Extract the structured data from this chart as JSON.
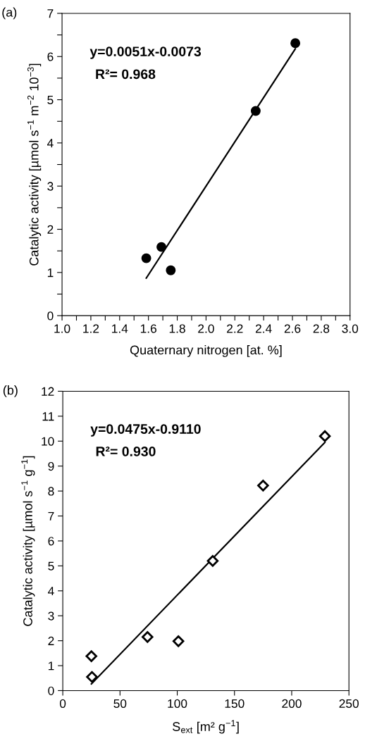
{
  "chart_data": [
    {
      "type": "scatter",
      "title": "(a)",
      "xlabel": "Quaternary nitrogen [at. %]",
      "ylabel": "Catalytic activity [µmol s$^{−1}$ m$^{−2}$ 10$^{−3}$]",
      "annotations": [
        "y=0.0051x-0.0073",
        "R²= 0.968"
      ],
      "series": [
        {
          "color": "#000000",
          "marker": "circle",
          "x": [
            1.585,
            1.69,
            1.755,
            2.345,
            2.62
          ],
          "values": [
            1.33,
            1.59,
            1.05,
            4.74,
            6.31
          ]
        },
        {
          "type": "line",
          "color": "#000000",
          "marker": "none",
          "x": [
            1.585,
            2.62
          ],
          "values": [
            0.87,
            6.18
          ]
        }
      ],
      "xlim": [
        1.0,
        3.0
      ],
      "ylim": [
        0,
        7
      ],
      "xticks": [
        {
          "value": 1,
          "label": "1.0"
        },
        {
          "value": 1.1,
          "label": null
        },
        1.2,
        {
          "value": 1.3,
          "label": null
        },
        1.4,
        {
          "value": 1.5,
          "label": null
        },
        1.6,
        {
          "value": 1.7,
          "label": null
        },
        1.8,
        {
          "value": 1.9,
          "label": null
        },
        {
          "value": 2,
          "label": "2.0"
        },
        {
          "value": 2.1,
          "label": null
        },
        2.2,
        {
          "value": 2.3,
          "label": null
        },
        2.4,
        {
          "value": 2.5,
          "label": null
        },
        2.6,
        {
          "value": 2.7,
          "label": null
        },
        2.8,
        {
          "value": 2.9,
          "label": null
        },
        {
          "value": 3,
          "label": "3.0"
        }
      ],
      "yticks": [
        0,
        {
          "value": 0.5,
          "label": null
        },
        1,
        {
          "value": 1.5,
          "label": null
        },
        2,
        {
          "value": 2.5,
          "label": null
        },
        3,
        {
          "value": 3.5,
          "label": null
        },
        4,
        {
          "value": 4.5,
          "label": null
        },
        5,
        {
          "value": 5.5,
          "label": null
        },
        6,
        {
          "value": 6.5,
          "label": null
        },
        7
      ],
      "grid": false,
      "legend": false
    },
    {
      "type": "scatter",
      "title": "(b)",
      "xlabel": "S$_{ext}$ [m² g$^{−1}$]",
      "ylabel": "Catalytic activity [µmol s$^{−1}$ g$^{−1}$]",
      "annotations": [
        "y=0.0475x-0.9110",
        "R²= 0.930"
      ],
      "series": [
        {
          "color": "#000000",
          "marker": "diamond",
          "x": [
            25,
            25.5,
            74,
            101,
            131,
            175,
            229
          ],
          "values": [
            1.38,
            0.55,
            2.15,
            1.98,
            5.2,
            8.22,
            10.2
          ]
        },
        {
          "type": "line",
          "color": "#000000",
          "marker": "none",
          "x": [
            25,
            229
          ],
          "values": [
            0.27,
            9.95
          ]
        }
      ],
      "xlim": [
        0,
        250
      ],
      "ylim": [
        0,
        12
      ],
      "xticks": [
        0,
        50,
        100,
        150,
        200,
        250
      ],
      "yticks": [
        0,
        1,
        2,
        3,
        4,
        5,
        6,
        7,
        8,
        9,
        10,
        11,
        12
      ],
      "grid": false,
      "legend": false
    }
  ]
}
